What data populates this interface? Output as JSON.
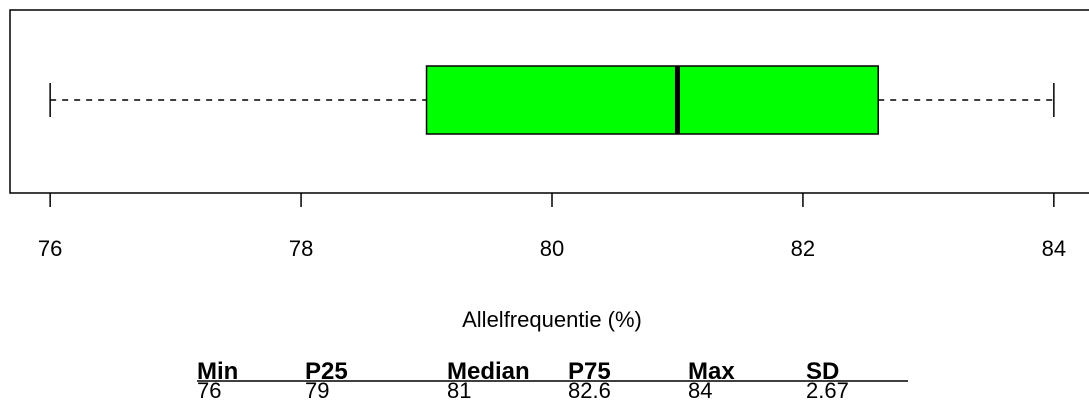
{
  "chart_data": {
    "type": "box",
    "x_label": "Allelfrequentie (%)",
    "box": {
      "min": 76,
      "q1": 79,
      "median": 81,
      "q3": 82.6,
      "max": 84
    },
    "color": "#00ff00",
    "xlim": [
      75.68,
      84.32
    ],
    "xticks": [
      76,
      78,
      80,
      82,
      84
    ]
  },
  "table": {
    "headers": [
      "Min",
      "P25",
      "Median",
      "P75",
      "Max",
      "SD"
    ],
    "values": [
      76,
      79,
      81,
      82.6,
      84,
      2.67
    ]
  }
}
